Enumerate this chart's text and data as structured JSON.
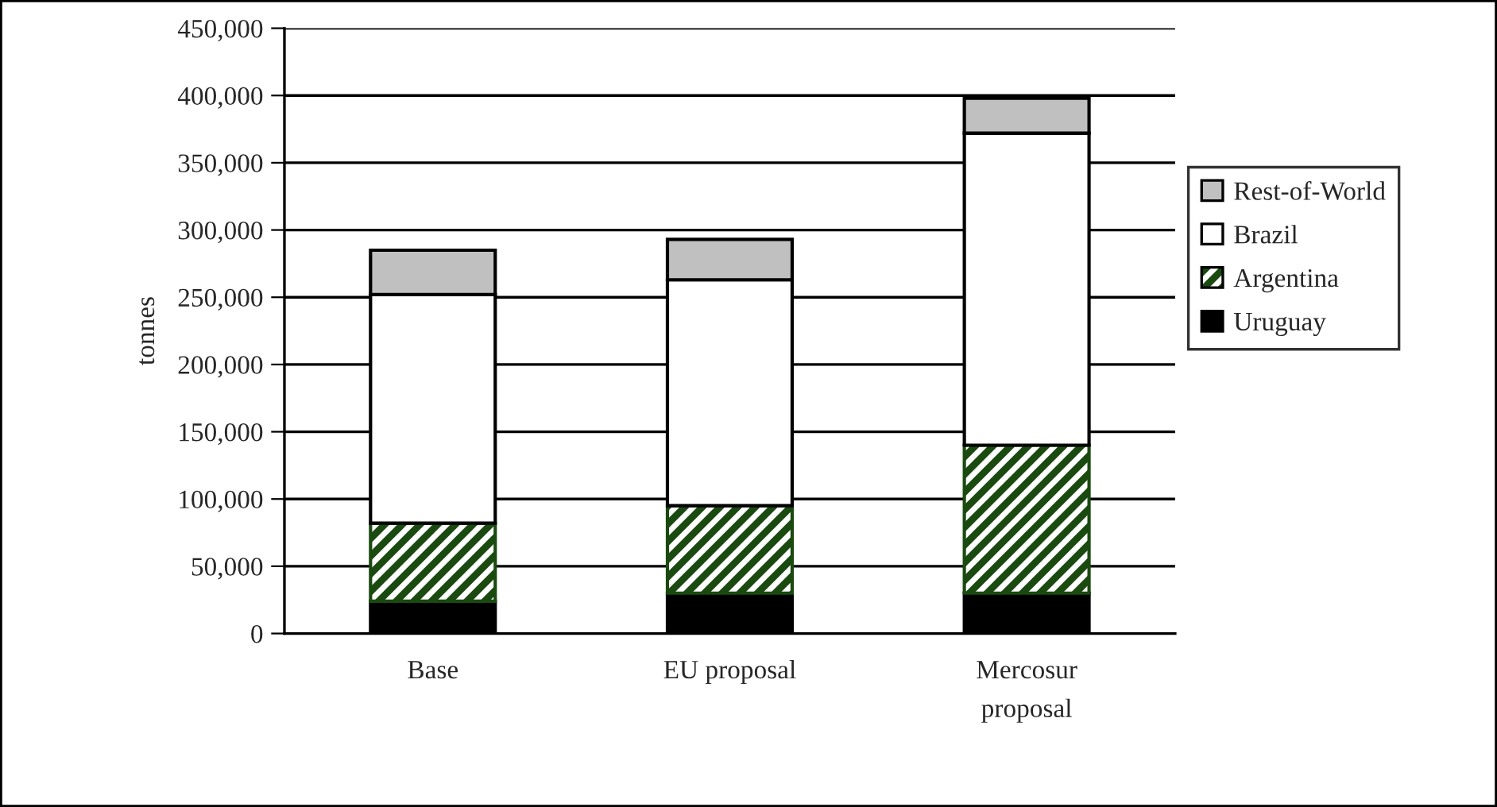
{
  "chart_data": {
    "type": "bar",
    "stacked": true,
    "ylabel": "tonnes",
    "categories": [
      "Base",
      "EU proposal",
      "Mercosur\nproposal"
    ],
    "series": [
      {
        "name": "Uruguay",
        "color": "#000000",
        "values": [
          24000,
          30000,
          30000
        ]
      },
      {
        "name": "Argentina",
        "color": "#1a4a10",
        "values": [
          58000,
          65000,
          110000
        ]
      },
      {
        "name": "Brazil",
        "color": "#ffffff",
        "values": [
          170000,
          168000,
          232000
        ]
      },
      {
        "name": "Rest-of-World",
        "color": "#c0c0c0",
        "values": [
          33000,
          30000,
          26000
        ]
      }
    ],
    "ylim": [
      0,
      450000
    ],
    "yticks": [
      {
        "value": 0,
        "label": "0"
      },
      {
        "value": 50000,
        "label": "50,000"
      },
      {
        "value": 100000,
        "label": "100,000"
      },
      {
        "value": 150000,
        "label": "150,000"
      },
      {
        "value": 200000,
        "label": "200,000"
      },
      {
        "value": 250000,
        "label": "250,000"
      },
      {
        "value": 300000,
        "label": "300,000"
      },
      {
        "value": 350000,
        "label": "350,000"
      },
      {
        "value": 400000,
        "label": "400,000"
      },
      {
        "value": 450000,
        "label": "450,000"
      }
    ],
    "grid": "y",
    "legend": "right"
  }
}
